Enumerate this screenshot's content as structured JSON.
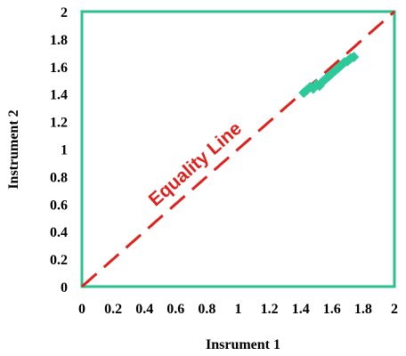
{
  "chart_data": {
    "type": "scatter",
    "xlabel": "Insrument 1",
    "ylabel": "Instrument 2",
    "xlim": [
      0,
      2
    ],
    "ylim": [
      0,
      2
    ],
    "x_ticks": [
      "0",
      "0.2",
      "0.4",
      "0.6",
      "0.8",
      "1",
      "1.2",
      "1.4",
      "1.6",
      "1.8",
      "2"
    ],
    "y_ticks": [
      "0",
      "0.2",
      "0.4",
      "0.6",
      "0.8",
      "1",
      "1.2",
      "1.4",
      "1.6",
      "1.8",
      "2"
    ],
    "grid": false,
    "series": [
      {
        "marker": "diamond",
        "color": "#2ec99a",
        "points": [
          [
            1.42,
            1.41
          ],
          [
            1.44,
            1.43
          ],
          [
            1.46,
            1.45
          ],
          [
            1.48,
            1.44
          ],
          [
            1.5,
            1.47
          ],
          [
            1.52,
            1.46
          ],
          [
            1.54,
            1.49
          ],
          [
            1.56,
            1.51
          ],
          [
            1.58,
            1.53
          ],
          [
            1.6,
            1.55
          ],
          [
            1.62,
            1.57
          ],
          [
            1.64,
            1.59
          ],
          [
            1.66,
            1.61
          ],
          [
            1.68,
            1.63
          ],
          [
            1.7,
            1.64
          ],
          [
            1.72,
            1.66
          ],
          [
            1.74,
            1.67
          ]
        ]
      }
    ],
    "reference_line": {
      "label": "Equality Line",
      "from": [
        0,
        0
      ],
      "to": [
        2,
        2
      ],
      "color": "#e0201b",
      "style": "dashed"
    },
    "frame_color": "#2ebf8f"
  }
}
